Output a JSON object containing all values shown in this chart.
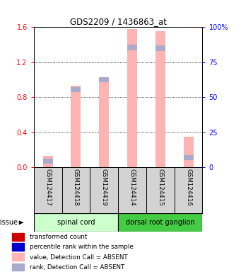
{
  "title": "GDS2209 / 1436863_at",
  "samples": [
    "GSM124417",
    "GSM124418",
    "GSM124419",
    "GSM124414",
    "GSM124415",
    "GSM124416"
  ],
  "pink_values": [
    0.13,
    0.93,
    1.0,
    1.575,
    1.555,
    0.35
  ],
  "blue_tops": [
    0.04,
    0.855,
    0.97,
    1.34,
    1.33,
    0.08
  ],
  "blue_heights": [
    0.06,
    0.06,
    0.06,
    0.06,
    0.06,
    0.06
  ],
  "ylim_left": [
    0,
    1.6
  ],
  "ylim_right": [
    0,
    100
  ],
  "yticks_left": [
    0,
    0.4,
    0.8,
    1.2,
    1.6
  ],
  "yticks_right": [
    0,
    25,
    50,
    75,
    100
  ],
  "bar_color_pink": "#ffb3b3",
  "bar_color_blue": "#aaaacc",
  "bar_width": 0.35,
  "group1_label": "spinal cord",
  "group2_label": "dorsal root ganglion",
  "group1_color": "#ccffcc",
  "group2_color": "#44cc44",
  "tissue_label": "tissue",
  "legend_items": [
    {
      "color": "#cc0000",
      "label": "transformed count"
    },
    {
      "color": "#0000cc",
      "label": "percentile rank within the sample"
    },
    {
      "color": "#ffb3b3",
      "label": "value, Detection Call = ABSENT"
    },
    {
      "color": "#aaaacc",
      "label": "rank, Detection Call = ABSENT"
    }
  ],
  "background_color": "#ffffff",
  "left_color": "red",
  "right_color": "blue",
  "sample_box_color": "#d3d3d3"
}
